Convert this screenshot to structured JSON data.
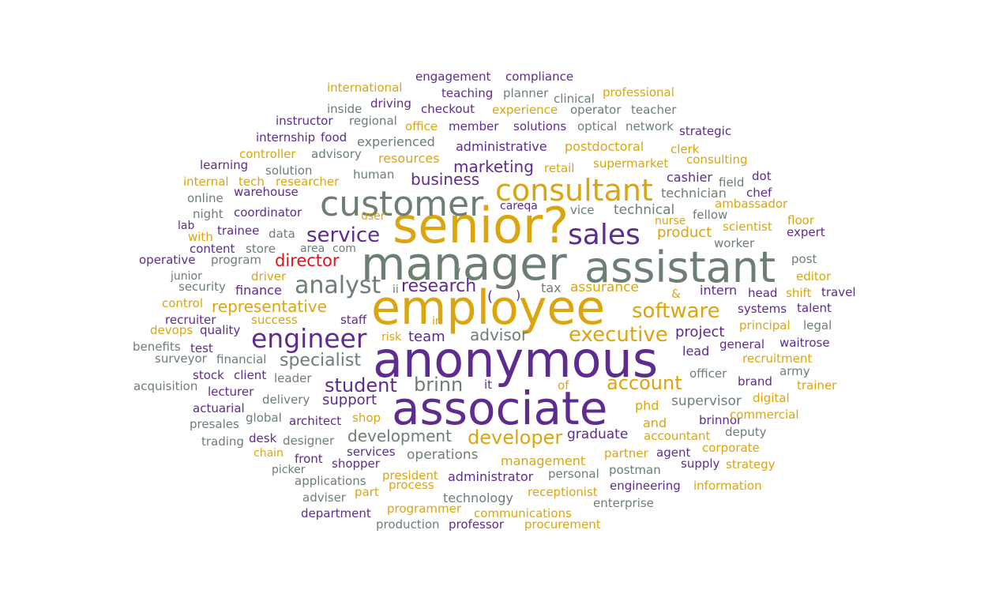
{
  "colors": {
    "purple": "#5e2b8f",
    "gold": "#dba510",
    "gray": "#6d7f72",
    "red": "#e0141a",
    "background": "#ffffff"
  },
  "words": [
    {
      "text": "senior?",
      "color": "gold"
    },
    {
      "text": "manager",
      "color": "gray"
    },
    {
      "text": "assistant",
      "color": "gray"
    },
    {
      "text": "employee",
      "color": "gold"
    },
    {
      "text": "anonymous",
      "color": "purple"
    },
    {
      "text": "associate",
      "color": "purple"
    },
    {
      "text": "customer",
      "color": "gray"
    },
    {
      "text": "consultant",
      "color": "gold"
    },
    {
      "text": "sales",
      "color": "purple"
    },
    {
      "text": "engineer",
      "color": "purple"
    },
    {
      "text": "analyst",
      "color": "gray"
    },
    {
      "text": "software",
      "color": "gold"
    },
    {
      "text": "executive",
      "color": "gold"
    },
    {
      "text": "service",
      "color": "purple"
    },
    {
      "text": "research",
      "color": "purple"
    },
    {
      "text": "student",
      "color": "purple"
    },
    {
      "text": "brinn",
      "color": "gray"
    },
    {
      "text": "account",
      "color": "gold"
    },
    {
      "text": "developer",
      "color": "gold"
    },
    {
      "text": "specialist",
      "color": "gray"
    },
    {
      "text": "representative",
      "color": "gold"
    },
    {
      "text": "business",
      "color": "purple"
    },
    {
      "text": "marketing",
      "color": "purple"
    },
    {
      "text": "director",
      "color": "red"
    },
    {
      "text": "development",
      "color": "gray"
    },
    {
      "text": "advisor",
      "color": "gray"
    },
    {
      "text": "project",
      "color": "purple"
    },
    {
      "text": "support",
      "color": "purple"
    },
    {
      "text": "team",
      "color": "purple"
    },
    {
      "text": "product",
      "color": "gold"
    },
    {
      "text": "technical",
      "color": "gray"
    },
    {
      "text": "operations",
      "color": "gray"
    },
    {
      "text": "assurance",
      "color": "gold"
    },
    {
      "text": "graduate",
      "color": "purple"
    },
    {
      "text": "phd",
      "color": "gold"
    },
    {
      "text": "lead",
      "color": "purple"
    },
    {
      "text": "supervisor",
      "color": "gray"
    },
    {
      "text": "management",
      "color": "gold"
    },
    {
      "text": "administrator",
      "color": "purple"
    },
    {
      "text": "finance",
      "color": "purple"
    },
    {
      "text": "tax",
      "color": "gray"
    },
    {
      "text": "and",
      "color": "gold"
    },
    {
      "text": "engagement",
      "color": "purple"
    },
    {
      "text": "compliance",
      "color": "purple"
    },
    {
      "text": "international",
      "color": "gold"
    },
    {
      "text": "teaching",
      "color": "purple"
    },
    {
      "text": "planner",
      "color": "gray"
    },
    {
      "text": "professional",
      "color": "gold"
    },
    {
      "text": "clinical",
      "color": "gray"
    },
    {
      "text": "driving",
      "color": "purple"
    },
    {
      "text": "inside",
      "color": "gray"
    },
    {
      "text": "checkout",
      "color": "purple"
    },
    {
      "text": "experience",
      "color": "gold"
    },
    {
      "text": "operator",
      "color": "gray"
    },
    {
      "text": "teacher",
      "color": "gray"
    },
    {
      "text": "instructor",
      "color": "purple"
    },
    {
      "text": "regional",
      "color": "gray"
    },
    {
      "text": "office",
      "color": "gold"
    },
    {
      "text": "member",
      "color": "purple"
    },
    {
      "text": "solutions",
      "color": "purple"
    },
    {
      "text": "optical",
      "color": "gray"
    },
    {
      "text": "network",
      "color": "gray"
    },
    {
      "text": "strategic",
      "color": "purple"
    },
    {
      "text": "internship",
      "color": "purple"
    },
    {
      "text": "food",
      "color": "purple"
    },
    {
      "text": "experienced",
      "color": "gray"
    },
    {
      "text": "administrative",
      "color": "purple"
    },
    {
      "text": "postdoctoral",
      "color": "gold"
    },
    {
      "text": "clerk",
      "color": "gold"
    },
    {
      "text": "controller",
      "color": "gold"
    },
    {
      "text": "advisory",
      "color": "gray"
    },
    {
      "text": "resources",
      "color": "gold"
    },
    {
      "text": "consulting",
      "color": "gold"
    },
    {
      "text": "supermarket",
      "color": "gold"
    },
    {
      "text": "learning",
      "color": "purple"
    },
    {
      "text": "solution",
      "color": "gray"
    },
    {
      "text": "human",
      "color": "gray"
    },
    {
      "text": "retail",
      "color": "gold"
    },
    {
      "text": "cashier",
      "color": "purple"
    },
    {
      "text": "dot",
      "color": "purple"
    },
    {
      "text": "field",
      "color": "gray"
    },
    {
      "text": "internal",
      "color": "gold"
    },
    {
      "text": "tech",
      "color": "gold"
    },
    {
      "text": "researcher",
      "color": "gold"
    },
    {
      "text": "technician",
      "color": "gray"
    },
    {
      "text": "chef",
      "color": "purple"
    },
    {
      "text": "warehouse",
      "color": "purple"
    },
    {
      "text": "online",
      "color": "gray"
    },
    {
      "text": "ambassador",
      "color": "gold"
    },
    {
      "text": "careqa",
      "color": "purple"
    },
    {
      "text": "night",
      "color": "gray"
    },
    {
      "text": "coordinator",
      "color": "purple"
    },
    {
      "text": "user",
      "color": "gold"
    },
    {
      "text": "vice",
      "color": "gray"
    },
    {
      "text": "fellow",
      "color": "gray"
    },
    {
      "text": "nurse",
      "color": "gold"
    },
    {
      "text": "floor",
      "color": "gold"
    },
    {
      "text": "lab",
      "color": "purple"
    },
    {
      "text": "trainee",
      "color": "purple"
    },
    {
      "text": "data",
      "color": "gray"
    },
    {
      "text": "scientist",
      "color": "gold"
    },
    {
      "text": "expert",
      "color": "purple"
    },
    {
      "text": "with",
      "color": "gold"
    },
    {
      "text": "content",
      "color": "purple"
    },
    {
      "text": "store",
      "color": "gray"
    },
    {
      "text": "area",
      "color": "gray"
    },
    {
      "text": "com",
      "color": "gray"
    },
    {
      "text": "worker",
      "color": "gray"
    },
    {
      "text": "operative",
      "color": "purple"
    },
    {
      "text": "program",
      "color": "gray"
    },
    {
      "text": "/",
      "color": "gray"
    },
    {
      "text": "post",
      "color": "gray"
    },
    {
      "text": "junior",
      "color": "gray"
    },
    {
      "text": "driver",
      "color": "gold"
    },
    {
      "text": "editor",
      "color": "gold"
    },
    {
      "text": "security",
      "color": "gray"
    },
    {
      "text": "ii",
      "color": "gray"
    },
    {
      "text": "(",
      "color": "purple"
    },
    {
      "text": ")",
      "color": "purple"
    },
    {
      "text": "&",
      "color": "gold"
    },
    {
      "text": "intern",
      "color": "purple"
    },
    {
      "text": "head",
      "color": "purple"
    },
    {
      "text": "shift",
      "color": "gold"
    },
    {
      "text": "travel",
      "color": "purple"
    },
    {
      "text": "control",
      "color": "gold"
    },
    {
      "text": "systems",
      "color": "purple"
    },
    {
      "text": "talent",
      "color": "purple"
    },
    {
      "text": "recruiter",
      "color": "purple"
    },
    {
      "text": "success",
      "color": "gold"
    },
    {
      "text": "staff",
      "color": "purple"
    },
    {
      "text": "in",
      "color": "gold"
    },
    {
      "text": "devops",
      "color": "gold"
    },
    {
      "text": "quality",
      "color": "purple"
    },
    {
      "text": "principal",
      "color": "gold"
    },
    {
      "text": "legal",
      "color": "gray"
    },
    {
      "text": "risk",
      "color": "gold"
    },
    {
      "text": "benefits",
      "color": "gray"
    },
    {
      "text": "test",
      "color": "purple"
    },
    {
      "text": "general",
      "color": "purple"
    },
    {
      "text": "waitrose",
      "color": "purple"
    },
    {
      "text": "surveyor",
      "color": "gray"
    },
    {
      "text": "financial",
      "color": "gray"
    },
    {
      "text": "recruitment",
      "color": "gold"
    },
    {
      "text": "stock",
      "color": "purple"
    },
    {
      "text": "client",
      "color": "purple"
    },
    {
      "text": "officer",
      "color": "gray"
    },
    {
      "text": "army",
      "color": "gray"
    },
    {
      "text": "acquisition",
      "color": "gray"
    },
    {
      "text": "leader",
      "color": "gray"
    },
    {
      "text": "it",
      "color": "purple"
    },
    {
      "text": "of",
      "color": "gold"
    },
    {
      "text": "brand",
      "color": "purple"
    },
    {
      "text": "trainer",
      "color": "gold"
    },
    {
      "text": "lecturer",
      "color": "purple"
    },
    {
      "text": "delivery",
      "color": "gray"
    },
    {
      "text": "digital",
      "color": "gold"
    },
    {
      "text": "actuarial",
      "color": "purple"
    },
    {
      "text": "global",
      "color": "gray"
    },
    {
      "text": "architect",
      "color": "purple"
    },
    {
      "text": "brinnor",
      "color": "purple"
    },
    {
      "text": "commercial",
      "color": "gold"
    },
    {
      "text": "presales",
      "color": "gray"
    },
    {
      "text": "shop",
      "color": "gold"
    },
    {
      "text": "deputy",
      "color": "gray"
    },
    {
      "text": "trading",
      "color": "gray"
    },
    {
      "text": "desk",
      "color": "purple"
    },
    {
      "text": "designer",
      "color": "gray"
    },
    {
      "text": "accountant",
      "color": "gold"
    },
    {
      "text": "chain",
      "color": "gold"
    },
    {
      "text": "services",
      "color": "purple"
    },
    {
      "text": "corporate",
      "color": "gold"
    },
    {
      "text": "front",
      "color": "purple"
    },
    {
      "text": "shopper",
      "color": "purple"
    },
    {
      "text": "partner",
      "color": "gold"
    },
    {
      "text": "agent",
      "color": "purple"
    },
    {
      "text": "supply",
      "color": "purple"
    },
    {
      "text": "strategy",
      "color": "gold"
    },
    {
      "text": "picker",
      "color": "gray"
    },
    {
      "text": "president",
      "color": "gold"
    },
    {
      "text": "personal",
      "color": "gray"
    },
    {
      "text": "postman",
      "color": "gray"
    },
    {
      "text": "applications",
      "color": "gray"
    },
    {
      "text": "process",
      "color": "gold"
    },
    {
      "text": "engineering",
      "color": "purple"
    },
    {
      "text": "information",
      "color": "gold"
    },
    {
      "text": "adviser",
      "color": "gray"
    },
    {
      "text": "part",
      "color": "gold"
    },
    {
      "text": "receptionist",
      "color": "gold"
    },
    {
      "text": "technology",
      "color": "gray"
    },
    {
      "text": "programmer",
      "color": "gold"
    },
    {
      "text": "enterprise",
      "color": "gray"
    },
    {
      "text": "department",
      "color": "purple"
    },
    {
      "text": "communications",
      "color": "gold"
    },
    {
      "text": "production",
      "color": "gray"
    },
    {
      "text": "professor",
      "color": "purple"
    },
    {
      "text": "procurement",
      "color": "gold"
    }
  ]
}
